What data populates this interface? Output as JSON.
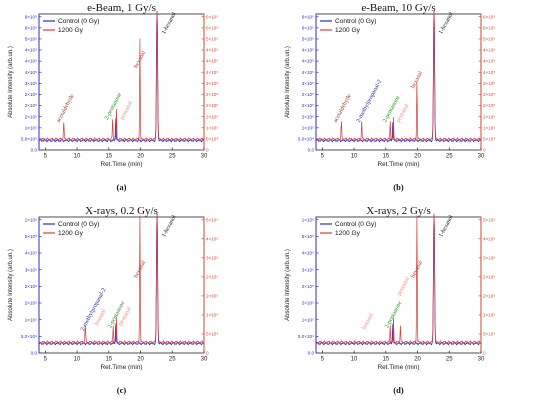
{
  "colors": {
    "control": "#2b2bd1",
    "irradiated": "#d43c3c",
    "axis_left": "#2b2bd1",
    "axis_right": "#e0482e",
    "label_green": "#2a8a2a",
    "label_red": "#c0392b",
    "label_salmon": "#e8917d",
    "label_brown": "#8b3a2b",
    "label_navy": "#1f2a8a",
    "label_black": "#111111"
  },
  "chart_data": [
    {
      "type": "line",
      "title": "e-Beam, 1 Gy/s",
      "panel_label": "(a)",
      "xlabel": "Ret.Time (min)",
      "ylabel": "Absolute Intensity (arb.un.)",
      "xlim": [
        4,
        30
      ],
      "xticks": [
        "5",
        "10",
        "15",
        "20",
        "25",
        "30"
      ],
      "left_ticks": [
        "0.0",
        "5.0×10⁴",
        "1×10⁵",
        "2×10⁵",
        "2×10⁵",
        "2×10⁵",
        "3×10⁵",
        "4×10⁵",
        "4×10⁵",
        "4×10⁵",
        "5×10⁵",
        "6×10⁵",
        "6×10⁵"
      ],
      "right_ticks": [
        "0",
        "5×10⁴",
        "1×10⁵",
        "2×10⁵",
        "2×10⁵",
        "2×10⁵",
        "3×10⁵",
        "4×10⁵",
        "4×10⁵",
        "4×10⁵",
        "5×10⁵",
        "6×10⁵",
        "6×10⁵"
      ],
      "legend": [
        "Control (0 Gy)",
        "1200 Gy"
      ],
      "series": [
        {
          "name": "Control (0 Gy)",
          "color_key": "control",
          "baseline": 0.07,
          "peaks": [
            {
              "x": 16.1,
              "h": 0.17,
              "w": 0.08
            },
            {
              "x": 22.6,
              "h": 1.0,
              "w": 0.12
            }
          ]
        },
        {
          "name": "1200 Gy",
          "color_key": "irradiated",
          "baseline": 0.08,
          "peaks": [
            {
              "x": 7.9,
              "h": 0.12,
              "w": 0.08
            },
            {
              "x": 15.6,
              "h": 0.14,
              "w": 0.07
            },
            {
              "x": 16.2,
              "h": 0.21,
              "w": 0.07
            },
            {
              "x": 19.9,
              "h": 0.74,
              "w": 0.07
            },
            {
              "x": 22.6,
              "h": 1.0,
              "w": 0.12
            }
          ]
        }
      ],
      "annotations": [
        {
          "text": "acetaldehyde",
          "x": 7.2,
          "y": 0.2,
          "color_key": "label_brown"
        },
        {
          "text": "2-pentanone",
          "x": 14.8,
          "y": 0.22,
          "color_key": "label_green"
        },
        {
          "text": "pentanal",
          "x": 17.2,
          "y": 0.22,
          "color_key": "label_salmon"
        },
        {
          "text": "hexanal",
          "x": 19.4,
          "y": 0.6,
          "color_key": "label_red"
        },
        {
          "text": "1-hexanol",
          "x": 23.8,
          "y": 0.85,
          "color_key": "label_black"
        }
      ]
    },
    {
      "type": "line",
      "title": "e-Beam, 10 Gy/s",
      "panel_label": "(b)",
      "xlabel": "Ret.Time (min)",
      "ylabel": "Absolute Intensity (arb.un.)",
      "xlim": [
        4,
        30
      ],
      "xticks": [
        "5",
        "10",
        "15",
        "20",
        "25",
        "30"
      ],
      "left_ticks": [
        "0.0",
        "5.0×10⁴",
        "1×10⁵",
        "2×10⁵",
        "2×10⁵",
        "2×10⁵",
        "3×10⁵",
        "4×10⁵",
        "4×10⁵",
        "4×10⁵",
        "5×10⁵",
        "6×10⁵",
        "6×10⁵"
      ],
      "right_ticks": [
        "0",
        "5×10⁴",
        "1×10⁵",
        "2×10⁵",
        "2×10⁵",
        "2×10⁵",
        "3×10⁵",
        "4×10⁵",
        "4×10⁵",
        "4×10⁵",
        "5×10⁵",
        "6×10⁵",
        "6×10⁵"
      ],
      "legend": [
        "Control (0 Gy)",
        "1200 Gy"
      ],
      "series": [
        {
          "name": "Control (0 Gy)",
          "color_key": "control",
          "baseline": 0.07,
          "peaks": [
            {
              "x": 16.1,
              "h": 0.14,
              "w": 0.08
            },
            {
              "x": 22.6,
              "h": 1.0,
              "w": 0.12
            }
          ]
        },
        {
          "name": "1200 Gy",
          "color_key": "irradiated",
          "baseline": 0.08,
          "peaks": [
            {
              "x": 8.0,
              "h": 0.12,
              "w": 0.08
            },
            {
              "x": 11.2,
              "h": 0.13,
              "w": 0.07
            },
            {
              "x": 15.7,
              "h": 0.13,
              "w": 0.07
            },
            {
              "x": 16.2,
              "h": 0.15,
              "w": 0.07
            },
            {
              "x": 19.9,
              "h": 0.42,
              "w": 0.07
            },
            {
              "x": 22.6,
              "h": 1.0,
              "w": 0.12
            }
          ]
        }
      ],
      "annotations": [
        {
          "text": "acetaldehyde",
          "x": 7.2,
          "y": 0.2,
          "color_key": "label_brown"
        },
        {
          "text": "2-methylpropanal-2",
          "x": 10.8,
          "y": 0.2,
          "color_key": "label_navy"
        },
        {
          "text": "2-pentanone",
          "x": 15.0,
          "y": 0.2,
          "color_key": "label_green"
        },
        {
          "text": "pentanal",
          "x": 17.1,
          "y": 0.2,
          "color_key": "label_salmon"
        },
        {
          "text": "hexanal",
          "x": 19.4,
          "y": 0.45,
          "color_key": "label_red"
        },
        {
          "text": "1-hexanol",
          "x": 23.8,
          "y": 0.85,
          "color_key": "label_black"
        }
      ]
    },
    {
      "type": "line",
      "title": "X-rays, 0.2 Gy/s",
      "panel_label": "(c)",
      "xlabel": "Ret.Time (min)",
      "ylabel": "Absolute Intensity (arb.un.)",
      "xlim": [
        4,
        30
      ],
      "xticks": [
        "5",
        "10",
        "15",
        "20",
        "25",
        "30"
      ],
      "left_ticks": [
        "0.0",
        "5.0×10⁴",
        "1×10⁵",
        "2×10⁵",
        "2×10⁵",
        "3×10⁵",
        "4×10⁵",
        "5×10⁵",
        "1×10⁶"
      ],
      "right_ticks": [
        "0",
        "5×10⁴",
        "1×10⁵",
        "2×10⁵",
        "2×10⁵",
        "3×10⁵",
        "4×10⁵",
        "5×10⁵"
      ],
      "legend": [
        "Control (0 Gy)",
        "1200 Gy"
      ],
      "series": [
        {
          "name": "Control (0 Gy)",
          "color_key": "control",
          "baseline": 0.07,
          "peaks": [
            {
              "x": 16.1,
              "h": 0.15,
              "w": 0.08
            },
            {
              "x": 22.6,
              "h": 1.0,
              "w": 0.12
            }
          ]
        },
        {
          "name": "1200 Gy",
          "color_key": "irradiated",
          "baseline": 0.08,
          "peaks": [
            {
              "x": 11.3,
              "h": 0.12,
              "w": 0.08
            },
            {
              "x": 15.7,
              "h": 0.12,
              "w": 0.07
            },
            {
              "x": 16.2,
              "h": 0.17,
              "w": 0.07
            },
            {
              "x": 19.9,
              "h": 0.93,
              "w": 0.07
            },
            {
              "x": 22.6,
              "h": 1.0,
              "w": 0.12
            }
          ]
        }
      ],
      "annotations": [
        {
          "text": "2-methylpropanal-2",
          "x": 11.0,
          "y": 0.16,
          "color_key": "label_navy"
        },
        {
          "text": "butanal",
          "x": 13.2,
          "y": 0.2,
          "color_key": "label_salmon"
        },
        {
          "text": "2-pentanone",
          "x": 15.3,
          "y": 0.18,
          "color_key": "label_green"
        },
        {
          "text": "pentanal",
          "x": 17.0,
          "y": 0.2,
          "color_key": "label_salmon"
        },
        {
          "text": "hexanal",
          "x": 19.4,
          "y": 0.55,
          "color_key": "label_red"
        },
        {
          "text": "1-hexanol",
          "x": 23.8,
          "y": 0.85,
          "color_key": "label_black"
        }
      ]
    },
    {
      "type": "line",
      "title": "X-rays, 2 Gy/s",
      "panel_label": "(d)",
      "xlabel": "Ret.Time (min)",
      "ylabel": "Absolute Intensity (arb.un.)",
      "xlim": [
        4,
        30
      ],
      "xticks": [
        "5",
        "10",
        "15",
        "20",
        "25",
        "30"
      ],
      "left_ticks": [
        "0.0",
        "5.0×10⁴",
        "1×10⁵",
        "2×10⁵",
        "2×10⁵",
        "3×10⁵",
        "4×10⁵",
        "5×10⁵",
        "1×10⁶"
      ],
      "right_ticks": [
        "0",
        "5×10⁴",
        "1×10⁵",
        "2×10⁵",
        "2×10⁵",
        "3×10⁵",
        "4×10⁵",
        "5×10⁵"
      ],
      "legend": [
        "Control (0 Gy)",
        "1200 Gy"
      ],
      "series": [
        {
          "name": "Control (0 Gy)",
          "color_key": "control",
          "baseline": 0.07,
          "peaks": [
            {
              "x": 16.1,
              "h": 0.15,
              "w": 0.08
            },
            {
              "x": 22.6,
              "h": 1.0,
              "w": 0.12
            }
          ]
        },
        {
          "name": "1200 Gy",
          "color_key": "irradiated",
          "baseline": 0.08,
          "peaks": [
            {
              "x": 15.7,
              "h": 0.12,
              "w": 0.07
            },
            {
              "x": 16.2,
              "h": 0.17,
              "w": 0.07
            },
            {
              "x": 17.3,
              "h": 0.12,
              "w": 0.07
            },
            {
              "x": 19.9,
              "h": 0.93,
              "w": 0.07
            },
            {
              "x": 22.6,
              "h": 1.0,
              "w": 0.12
            }
          ]
        }
      ],
      "annotations": [
        {
          "text": "butanal",
          "x": 11.7,
          "y": 0.17,
          "color_key": "label_salmon"
        },
        {
          "text": "2-pentanone",
          "x": 15.3,
          "y": 0.18,
          "color_key": "label_green"
        },
        {
          "text": "pentanal",
          "x": 17.2,
          "y": 0.42,
          "color_key": "label_salmon"
        },
        {
          "text": "hexanal",
          "x": 19.4,
          "y": 0.55,
          "color_key": "label_red"
        },
        {
          "text": "1-hexanol",
          "x": 23.8,
          "y": 0.85,
          "color_key": "label_black"
        }
      ]
    }
  ]
}
